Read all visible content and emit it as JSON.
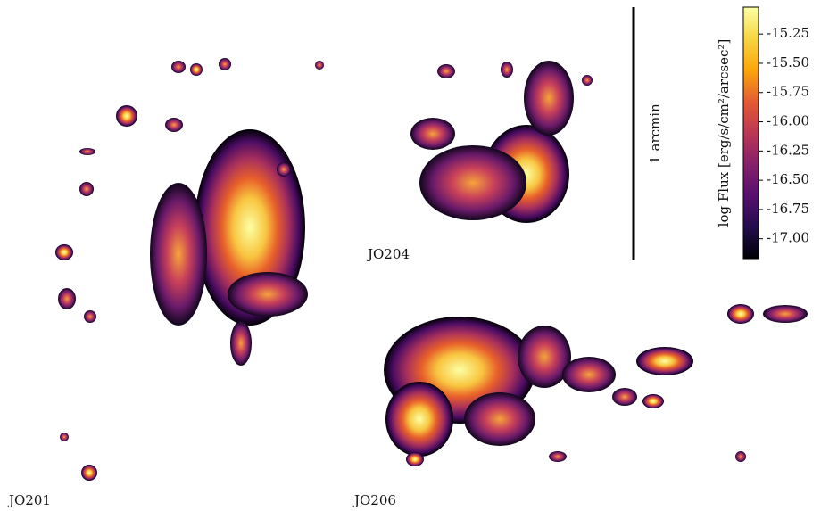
{
  "panels": [
    {
      "label": "JO201"
    },
    {
      "label": "JO204"
    },
    {
      "label": "JO206"
    }
  ],
  "scale_bar": {
    "label": "1 arcmin"
  },
  "colorbar": {
    "label": "log Flux [erg/s/cm²/arcsec²]",
    "lim": [
      -17.17,
      -15.02
    ],
    "ticks": [
      -15.25,
      {
        "value": -15.5,
        "label": "-15.50"
      },
      -15.75,
      {
        "value": -16.0,
        "label": "-16.00"
      },
      -16.25,
      {
        "value": -16.5,
        "label": "-16.50"
      },
      -16.75,
      {
        "value": -17.0,
        "label": "-17.00"
      }
    ]
  }
}
